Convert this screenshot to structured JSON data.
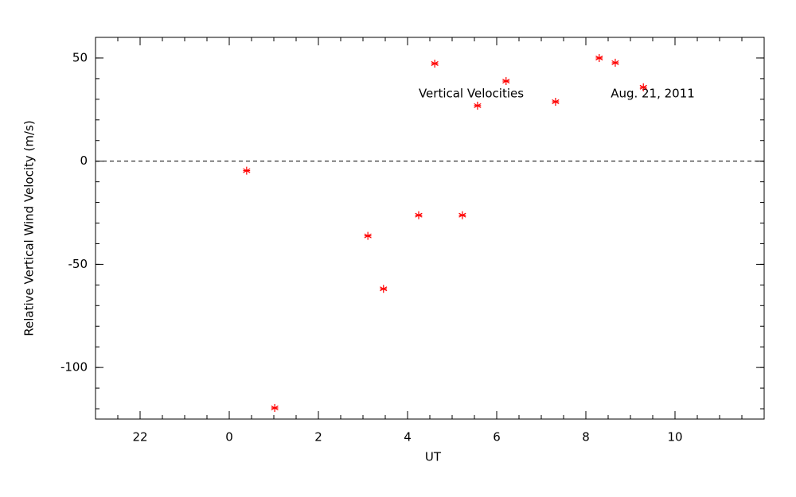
{
  "chart_data": {
    "type": "scatter",
    "xlabel": "UT",
    "ylabel": "Relative Vertical Wind Velocity (m/s)",
    "annotations": [
      "Vertical Velocities",
      "Aug. 21, 2011"
    ],
    "x": [
      0.39,
      1.02,
      3.11,
      3.46,
      4.25,
      4.61,
      5.23,
      5.57,
      6.21,
      7.32,
      8.3,
      8.66,
      9.29
    ],
    "series": [
      {
        "name": "Vertical Velocities",
        "color": "#ff0000",
        "values": [
          -4.6,
          -119.6,
          -36.2,
          -61.9,
          -26.2,
          47.3,
          -26.2,
          26.9,
          38.8,
          28.8,
          50.0,
          47.7,
          35.8
        ]
      }
    ],
    "xlim": [
      -3,
      12
    ],
    "xticks": [
      {
        "value": -2,
        "label": "22"
      },
      0,
      2,
      4,
      6,
      8,
      10
    ],
    "ylim": [
      -125,
      60
    ],
    "yticks": [
      -100,
      -50,
      0,
      50
    ],
    "hline": 0
  }
}
